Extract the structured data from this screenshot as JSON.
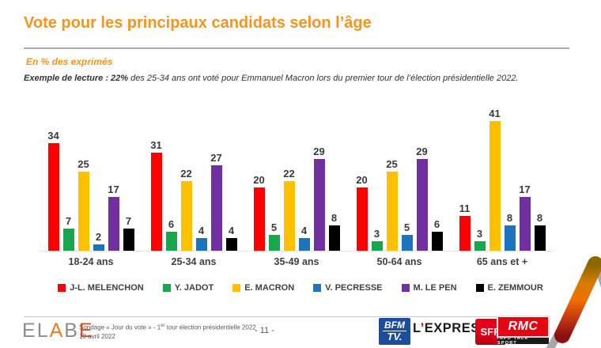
{
  "header": {
    "title": "Vote pour les principaux candidats selon l’âge",
    "unit_note": "En % des exprimés",
    "example_bold": "Exemple de lecture : 22%",
    "example_rest": " des 25-34 ans ont voté pour Emmanuel Macron lors du premier tour de l’élection présidentielle 2022."
  },
  "chart_data": {
    "type": "bar",
    "title": "Vote pour les principaux candidats selon l’âge",
    "unit": "En % des exprimés",
    "categories": [
      "18-24 ans",
      "25-34 ans",
      "35-49 ans",
      "50-64 ans",
      "65 ans et +"
    ],
    "series": [
      {
        "name": "J-L. MELENCHON",
        "color": "#FF0000",
        "values": [
          34,
          31,
          20,
          20,
          11
        ]
      },
      {
        "name": "Y. JADOT",
        "color": "#1AA64E",
        "values": [
          7,
          6,
          5,
          3,
          3
        ]
      },
      {
        "name": "E. MACRON",
        "color": "#FFC000",
        "values": [
          25,
          22,
          22,
          25,
          41
        ]
      },
      {
        "name": "V. PECRESSE",
        "color": "#1C75BC",
        "values": [
          2,
          4,
          4,
          5,
          8
        ]
      },
      {
        "name": "M. LE PEN",
        "color": "#7030A0",
        "values": [
          17,
          27,
          29,
          29,
          17
        ]
      },
      {
        "name": "E. ZEMMOUR",
        "color": "#000000",
        "values": [
          7,
          4,
          8,
          6,
          8
        ]
      }
    ],
    "ylim": [
      0,
      45
    ],
    "grid": false,
    "legend_position": "bottom",
    "value_labels": true
  },
  "footer": {
    "logo_letters": [
      {
        "ch": "E",
        "color": "#8C8C8C"
      },
      {
        "ch": "L",
        "color": "#8C8C8C"
      },
      {
        "ch": "A",
        "color": "#E87E22"
      },
      {
        "ch": "B",
        "color": "#8C8C8C"
      },
      {
        "ch": "E",
        "color": "#E0501E"
      }
    ],
    "source_line1_pre": "Sondage « Jour du vote » - 1",
    "source_line1_sup": "er",
    "source_line1_post": " tour élection présidentielle 2022",
    "source_line2": "10 avril 2022",
    "page_number": "- 11 -",
    "media": {
      "bfm_top": "BFM",
      "bfm_bottom": "TV.",
      "lexpress_l": "L",
      "lexpress_apos": "’",
      "lexpress_rest": "EXPRESS",
      "sfr": "SFR",
      "rmc": "RMC",
      "rmc_tagline": "INFO TALK SPORT"
    }
  },
  "colors": {
    "accent_orange": "#F5941F",
    "axis_line": "#E3E3E3",
    "rule_grey": "#ABABAB",
    "deco_grey": "#A8A8A8"
  }
}
